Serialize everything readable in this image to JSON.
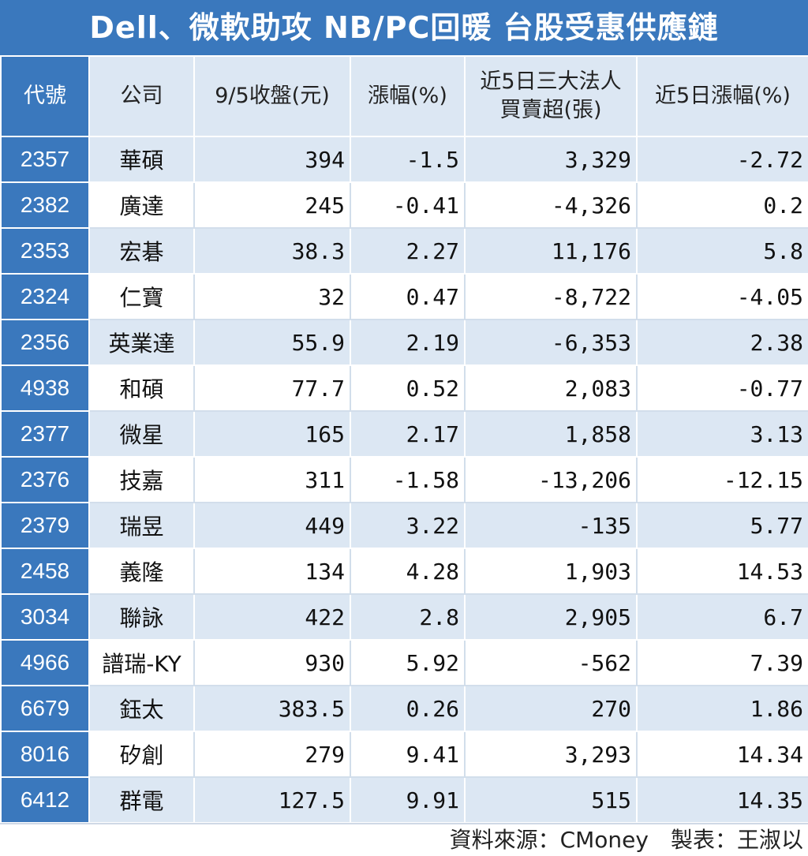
{
  "title": "Dell、微軟助攻 NB/PC回暖 台股受惠供應鏈",
  "headers": [
    "代號",
    "公司",
    "9/5收盤(元)",
    "漲幅(%)",
    "近5日三大法人\n買賣超(張)",
    "近5日漲幅(%)"
  ],
  "headers_line1": [
    "代號",
    "公司",
    "9/5收盤(元)",
    "漲幅(%)",
    "近5日三大法人",
    "近5日漲幅(%)"
  ],
  "headers_line2": [
    "",
    "",
    "",
    "",
    "買賣超(張)",
    ""
  ],
  "rows": [
    [
      "2357",
      "華碩",
      "394",
      "-1.5",
      "3,329",
      "-2.72"
    ],
    [
      "2382",
      "廣達",
      "245",
      "-0.41",
      "-4,326",
      "0.2"
    ],
    [
      "2353",
      "宏碁",
      "38.3",
      "2.27",
      "11,176",
      "5.8"
    ],
    [
      "2324",
      "仁寶",
      "32",
      "0.47",
      "-8,722",
      "-4.05"
    ],
    [
      "2356",
      "英業達",
      "55.9",
      "2.19",
      "-6,353",
      "2.38"
    ],
    [
      "4938",
      "和碩",
      "77.7",
      "0.52",
      "2,083",
      "-0.77"
    ],
    [
      "2377",
      "微星",
      "165",
      "2.17",
      "1,858",
      "3.13"
    ],
    [
      "2376",
      "技嘉",
      "311",
      "-1.58",
      "-13,206",
      "-12.15"
    ],
    [
      "2379",
      "瑞昱",
      "449",
      "3.22",
      "-135",
      "5.77"
    ],
    [
      "2458",
      "義隆",
      "134",
      "4.28",
      "1,903",
      "14.53"
    ],
    [
      "3034",
      "聯詠",
      "422",
      "2.8",
      "2,905",
      "6.7"
    ],
    [
      "4966",
      "譜瑞-KY",
      "930",
      "5.92",
      "-562",
      "7.39"
    ],
    [
      "6679",
      "鈺太",
      "383.5",
      "0.26",
      "270",
      "1.86"
    ],
    [
      "8016",
      "矽創",
      "279",
      "9.41",
      "3,293",
      "14.34"
    ],
    [
      "6412",
      "群電",
      "127.5",
      "9.91",
      "515",
      "14.35"
    ]
  ],
  "footer": {
    "source": "資料來源：CMoney",
    "author": "製表：王淑以"
  },
  "colors": {
    "header_blue": "#3a78bd",
    "row_light": "#dce7f3",
    "white": "#ffffff"
  }
}
